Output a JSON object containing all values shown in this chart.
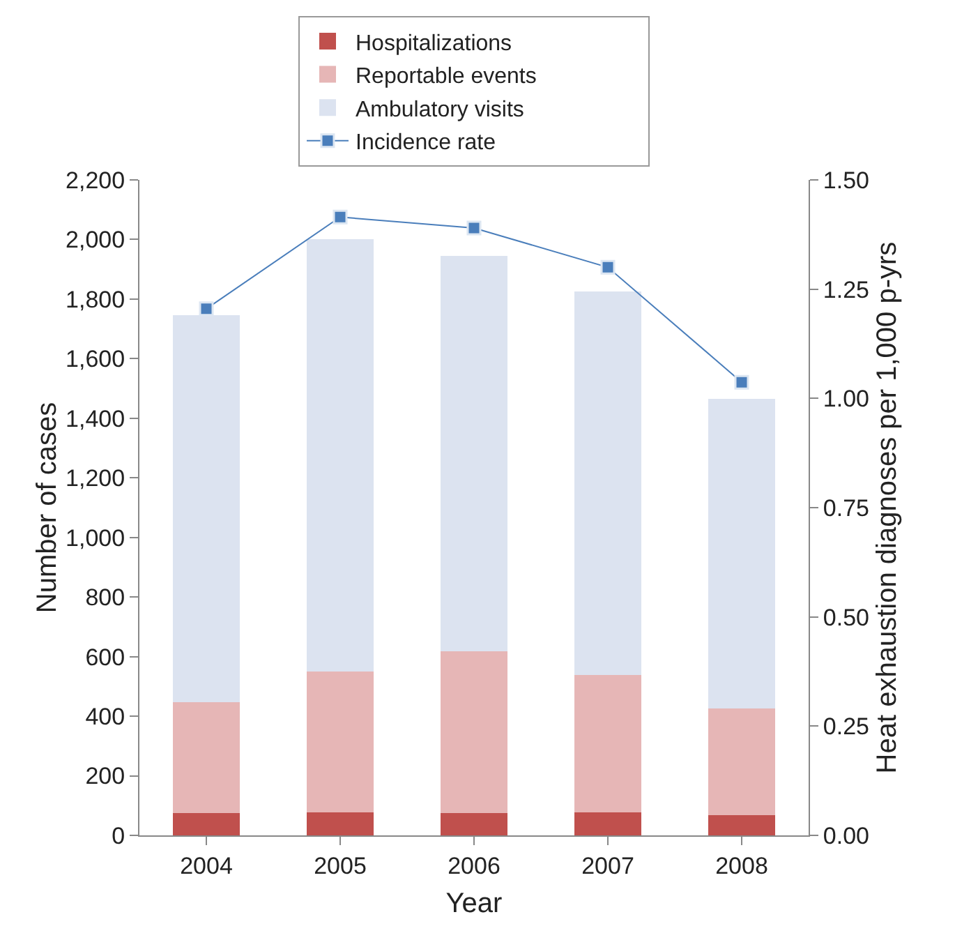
{
  "chart_data": {
    "type": "bar",
    "stacked": true,
    "xlabel": "Year",
    "ylabel": "Number of cases",
    "y2label": "Heat exhaustion diagnoses per 1,000 p-yrs",
    "categories": [
      "2004",
      "2005",
      "2006",
      "2007",
      "2008"
    ],
    "series": [
      {
        "name": "Hospitalizations",
        "color": "#c0504d",
        "values": [
          74,
          78,
          75,
          78,
          68
        ]
      },
      {
        "name": "Reportable events",
        "color": "#e6b6b6",
        "values": [
          372,
          472,
          544,
          460,
          358
        ]
      },
      {
        "name": "Ambulatory visits",
        "color": "#dce3f0",
        "values": [
          1299,
          1450,
          1326,
          1287,
          1039
        ]
      },
      {
        "name": "Incidence rate",
        "type": "line",
        "axis": "y2",
        "color": "#4a7ebb",
        "marker": "square",
        "values": [
          1.205,
          1.415,
          1.39,
          1.3,
          1.037
        ]
      }
    ],
    "ylim": [
      0,
      2200
    ],
    "yticks": [
      {
        "value": 0,
        "label": "0"
      },
      {
        "value": 200,
        "label": "200"
      },
      {
        "value": 400,
        "label": "400"
      },
      {
        "value": 600,
        "label": "600"
      },
      {
        "value": 800,
        "label": "800"
      },
      {
        "value": 1000,
        "label": "1,000"
      },
      {
        "value": 1200,
        "label": "1,200"
      },
      {
        "value": 1400,
        "label": "1,400"
      },
      {
        "value": 1600,
        "label": "1,600"
      },
      {
        "value": 1800,
        "label": "1,800"
      },
      {
        "value": 2000,
        "label": "2,000"
      },
      {
        "value": 2200,
        "label": "2,200"
      }
    ],
    "y2lim": [
      0,
      1.5
    ],
    "y2ticks": [
      {
        "value": 0,
        "label": "0.00"
      },
      {
        "value": 0.25,
        "label": "0.25"
      },
      {
        "value": 0.5,
        "label": "0.50"
      },
      {
        "value": 0.75,
        "label": "0.75"
      },
      {
        "value": 1,
        "label": "1.00"
      },
      {
        "value": 1.25,
        "label": "1.25"
      },
      {
        "value": 1.5,
        "label": "1.50"
      }
    ],
    "grid": false,
    "legend": "top"
  }
}
